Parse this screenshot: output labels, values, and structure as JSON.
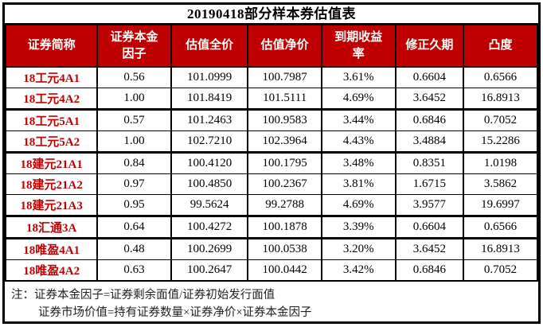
{
  "title": "20190418部分样本券估值表",
  "table": {
    "columns": [
      {
        "key": "security-name",
        "label": "证券简称"
      },
      {
        "key": "principal-factor",
        "label": "证券本金\n因子"
      },
      {
        "key": "full-price",
        "label": "估值全价"
      },
      {
        "key": "net-price",
        "label": "估值净价"
      },
      {
        "key": "ytm",
        "label": "到期收益\n率"
      },
      {
        "key": "modified-duration",
        "label": "修正久期"
      },
      {
        "key": "convexity",
        "label": "凸度"
      }
    ],
    "rows": [
      [
        "18工元4A1",
        "0.56",
        "101.0999",
        "100.7987",
        "3.61%",
        "0.6604",
        "0.6566"
      ],
      [
        "18工元4A2",
        "1.00",
        "101.8419",
        "101.5111",
        "4.69%",
        "3.6452",
        "16.8913"
      ],
      [
        "18工元5A1",
        "0.57",
        "101.2463",
        "100.9583",
        "3.44%",
        "0.6846",
        "0.7052"
      ],
      [
        "18工元5A2",
        "1.00",
        "102.7210",
        "102.3964",
        "4.43%",
        "3.4884",
        "15.2286"
      ],
      [
        "18建元21A1",
        "0.84",
        "100.4120",
        "100.1795",
        "3.48%",
        "0.8351",
        "1.0198"
      ],
      [
        "18建元21A2",
        "0.97",
        "100.4850",
        "100.2367",
        "3.81%",
        "1.6715",
        "3.5862"
      ],
      [
        "18建元21A3",
        "0.95",
        "99.5624",
        "99.2788",
        "4.69%",
        "3.9577",
        "19.6997"
      ],
      [
        "18汇通3A",
        "0.64",
        "100.4272",
        "100.1878",
        "3.39%",
        "0.6604",
        "0.6566"
      ],
      [
        "18唯盈4A1",
        "0.48",
        "100.2699",
        "100.0538",
        "3.20%",
        "3.6452",
        "16.8913"
      ],
      [
        "18唯盈4A2",
        "0.63",
        "100.2647",
        "100.0442",
        "3.42%",
        "0.6846",
        "0.7052"
      ]
    ],
    "thick_separator_after_rows": [
      2,
      4,
      7,
      8
    ]
  },
  "notes": {
    "prefix": "注：",
    "line1": "证券本金因子=证券剩余面值/证券初始发行面值",
    "line2": "证券市场价值=持有证券数量×证券净价×证券本金因子"
  },
  "colors": {
    "header_bg": "#C00000",
    "header_text": "#FFFFFF",
    "row_label_text": "#C00000",
    "border": "#000000"
  }
}
